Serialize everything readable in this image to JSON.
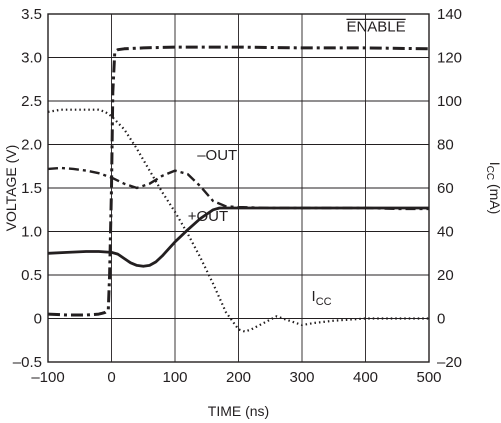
{
  "chart_data": {
    "type": "line",
    "title": "",
    "xlabel": "TIME (ns)",
    "ylabel_left": "VOLTAGE (V)",
    "ylabel_right_base": "I",
    "ylabel_right_sub": "CC",
    "ylabel_right_suffix": " (mA)",
    "xlim": [
      -100,
      500
    ],
    "ylim_left": [
      -0.5,
      3.5
    ],
    "ylim_right": [
      -20,
      140
    ],
    "x_ticks": [
      -100,
      0,
      100,
      200,
      300,
      400,
      500
    ],
    "x_tick_labels": [
      "–100",
      "0",
      "100",
      "200",
      "300",
      "400",
      "500"
    ],
    "y_left_ticks": [
      -0.5,
      0,
      0.5,
      1.0,
      1.5,
      2.0,
      2.5,
      3.0,
      3.5
    ],
    "y_left_tick_labels": [
      "–0.5",
      "0",
      "0.5",
      "1.0",
      "1.5",
      "2.0",
      "2.5",
      "3.0",
      "3.5"
    ],
    "y_right_ticks": [
      -20,
      0,
      20,
      40,
      60,
      80,
      100,
      120,
      140
    ],
    "y_right_tick_labels": [
      "–20",
      "0",
      "20",
      "40",
      "60",
      "80",
      "100",
      "120",
      "140"
    ],
    "grid": true,
    "annotations": {
      "enable": "ENABLE",
      "minus_out": "–OUT",
      "plus_out": "+OUT",
      "icc_base": "I",
      "icc_sub": "CC"
    },
    "series": [
      {
        "key": "enable",
        "axis": "left",
        "style": "dashdot-heavy",
        "x": [
          -100,
          -70,
          -40,
          -20,
          -15,
          -10,
          -5,
          -3,
          0,
          2,
          5,
          8,
          10,
          20,
          50,
          100,
          150,
          200,
          300,
          400,
          500
        ],
        "y": [
          0.05,
          0.04,
          0.04,
          0.05,
          0.06,
          0.07,
          0.1,
          0.5,
          1.5,
          2.6,
          3.05,
          3.08,
          3.09,
          3.1,
          3.11,
          3.12,
          3.12,
          3.12,
          3.11,
          3.11,
          3.1
        ]
      },
      {
        "key": "minus_out",
        "axis": "left",
        "style": "dashdot",
        "x": [
          -100,
          -80,
          -60,
          -40,
          -20,
          0,
          20,
          40,
          60,
          80,
          100,
          120,
          140,
          160,
          180,
          200,
          250,
          300,
          350,
          400,
          450,
          500
        ],
        "y": [
          1.72,
          1.73,
          1.72,
          1.7,
          1.67,
          1.62,
          1.55,
          1.5,
          1.55,
          1.64,
          1.7,
          1.66,
          1.52,
          1.35,
          1.29,
          1.28,
          1.27,
          1.27,
          1.27,
          1.27,
          1.26,
          1.26
        ]
      },
      {
        "key": "plus_out",
        "axis": "left",
        "style": "solid",
        "x": [
          -100,
          -70,
          -40,
          -20,
          0,
          10,
          20,
          30,
          40,
          50,
          60,
          70,
          80,
          90,
          100,
          120,
          140,
          160,
          170,
          200,
          300,
          400,
          500
        ],
        "y": [
          0.75,
          0.76,
          0.77,
          0.77,
          0.76,
          0.74,
          0.69,
          0.64,
          0.61,
          0.6,
          0.61,
          0.65,
          0.72,
          0.8,
          0.88,
          1.02,
          1.15,
          1.25,
          1.27,
          1.27,
          1.27,
          1.27,
          1.27
        ]
      },
      {
        "key": "icc",
        "axis": "right",
        "style": "dotted",
        "x": [
          -100,
          -80,
          -60,
          -40,
          -20,
          -10,
          0,
          20,
          40,
          60,
          80,
          100,
          120,
          140,
          160,
          180,
          200,
          210,
          220,
          240,
          260,
          280,
          300,
          320,
          350,
          400,
          450,
          500
        ],
        "y": [
          95,
          96,
          96,
          96,
          96,
          95,
          93,
          87,
          78,
          68,
          58,
          49,
          39,
          28,
          16,
          3,
          -5,
          -6,
          -5,
          -2,
          1,
          -1,
          -3,
          -2,
          -1,
          0,
          0,
          0
        ]
      }
    ]
  }
}
